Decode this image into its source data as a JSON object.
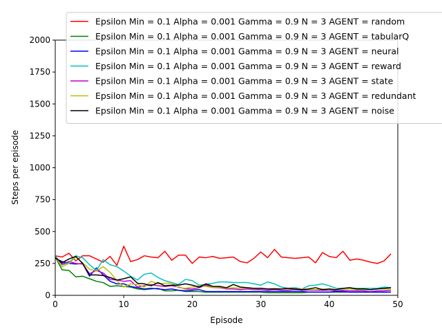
{
  "chart_data": {
    "type": "line",
    "xlabel": "Episode",
    "ylabel": "Steps per episode",
    "xlim": [
      0,
      50
    ],
    "ylim": [
      0,
      2000
    ],
    "xticks": [
      0,
      10,
      20,
      30,
      40,
      50
    ],
    "yticks": [
      0,
      250,
      500,
      750,
      1000,
      1250,
      1500,
      1750,
      2000
    ],
    "grid": false,
    "legend_position": "top-right",
    "x": [
      0,
      1,
      2,
      3,
      4,
      5,
      6,
      7,
      8,
      9,
      10,
      11,
      12,
      13,
      14,
      15,
      16,
      17,
      18,
      19,
      20,
      21,
      22,
      23,
      24,
      25,
      26,
      27,
      28,
      29,
      30,
      31,
      32,
      33,
      34,
      35,
      36,
      37,
      38,
      39,
      40,
      41,
      42,
      43,
      44,
      45,
      46,
      47,
      48,
      49
    ],
    "series": [
      {
        "name": "Epsilon Min = 0.1 Alpha = 0.001 Gamma = 0.9 N = 3 AGENT = random",
        "color": "#ff0000",
        "values": [
          310,
          300,
          330,
          270,
          310,
          310,
          285,
          260,
          305,
          235,
          385,
          265,
          280,
          310,
          300,
          295,
          345,
          275,
          315,
          315,
          250,
          300,
          295,
          305,
          290,
          295,
          300,
          265,
          255,
          290,
          340,
          295,
          360,
          300,
          295,
          290,
          295,
          300,
          255,
          335,
          305,
          295,
          345,
          275,
          285,
          275,
          260,
          250,
          270,
          325
        ]
      },
      {
        "name": "Epsilon Min = 0.1 Alpha = 0.001 Gamma = 0.9 N = 3 AGENT = tabularQ",
        "color": "#008000",
        "values": [
          300,
          200,
          195,
          145,
          150,
          130,
          110,
          100,
          70,
          75,
          70,
          65,
          50,
          45,
          50,
          55,
          35,
          35,
          40,
          30,
          30,
          30,
          25,
          25,
          25,
          25,
          25,
          25,
          25,
          25,
          25,
          20,
          20,
          20,
          20,
          20,
          20,
          25,
          25,
          25,
          25,
          25,
          25,
          25,
          25,
          25,
          25,
          25,
          25,
          25
        ]
      },
      {
        "name": "Epsilon Min = 0.1 Alpha = 0.001 Gamma = 0.9 N = 3 AGENT = neural",
        "color": "#0000ff",
        "values": [
          290,
          265,
          250,
          245,
          250,
          150,
          215,
          160,
          110,
          90,
          90,
          70,
          60,
          50,
          55,
          50,
          45,
          50,
          40,
          35,
          40,
          45,
          30,
          30,
          30,
          30,
          30,
          30,
          30,
          30,
          30,
          30,
          30,
          30,
          30,
          30,
          30,
          25,
          25,
          25,
          25,
          30,
          30,
          25,
          25,
          25,
          25,
          25,
          25,
          25
        ]
      },
      {
        "name": "Epsilon Min = 0.1 Alpha = 0.001 Gamma = 0.9 N = 3 AGENT = reward",
        "color": "#00bfbf",
        "values": [
          310,
          240,
          255,
          310,
          295,
          240,
          195,
          280,
          240,
          225,
          190,
          150,
          120,
          165,
          175,
          140,
          115,
          100,
          85,
          125,
          115,
          80,
          85,
          95,
          105,
          105,
          100,
          100,
          100,
          90,
          80,
          105,
          90,
          65,
          55,
          60,
          50,
          75,
          80,
          90,
          75,
          55,
          55,
          55,
          55,
          55,
          55,
          55,
          65,
          60
        ]
      },
      {
        "name": "Epsilon Min = 0.1 Alpha = 0.001 Gamma = 0.9 N = 3 AGENT = state",
        "color": "#bf00bf",
        "values": [
          300,
          245,
          265,
          250,
          245,
          170,
          195,
          175,
          125,
          120,
          110,
          115,
          65,
          75,
          85,
          75,
          70,
          75,
          65,
          50,
          50,
          60,
          80,
          60,
          60,
          50,
          50,
          45,
          50,
          45,
          45,
          40,
          45,
          40,
          40,
          45,
          40,
          40,
          40,
          40,
          40,
          35,
          40,
          35,
          35,
          35,
          30,
          35,
          35,
          40
        ]
      },
      {
        "name": "Epsilon Min = 0.1 Alpha = 0.001 Gamma = 0.9 N = 3 AGENT = redundant",
        "color": "#bfbf00",
        "values": [
          300,
          225,
          250,
          300,
          255,
          205,
          190,
          225,
          180,
          115,
          65,
          90,
          85,
          65,
          110,
          90,
          95,
          95,
          60,
          55,
          65,
          75,
          70,
          60,
          65,
          55,
          60,
          55,
          60,
          50,
          55,
          50,
          55,
          50,
          50,
          50,
          50,
          45,
          45,
          50,
          45,
          45,
          50,
          50,
          45,
          45,
          45,
          50,
          50,
          50
        ]
      },
      {
        "name": "Epsilon Min = 0.1 Alpha = 0.001 Gamma = 0.9 N = 3 AGENT = noise",
        "color": "#000000",
        "values": [
          295,
          255,
          285,
          305,
          250,
          160,
          160,
          155,
          140,
          120,
          130,
          145,
          95,
          90,
          75,
          100,
          75,
          80,
          80,
          90,
          80,
          65,
          90,
          70,
          70,
          60,
          85,
          65,
          60,
          55,
          55,
          50,
          50,
          50,
          55,
          50,
          45,
          50,
          60,
          45,
          50,
          45,
          55,
          60,
          50,
          50,
          45,
          50,
          55,
          60
        ]
      }
    ]
  }
}
